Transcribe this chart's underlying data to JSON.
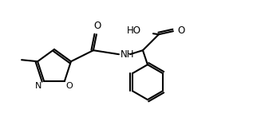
{
  "background_color": "#ffffff",
  "bond_color": "#000000",
  "lw": 1.5,
  "atoms": {
    "N_label": "N",
    "O_label": "O",
    "NH_label": "NH",
    "HO_label": "HO"
  },
  "font_size": 8.5,
  "font_size_small": 8.0
}
